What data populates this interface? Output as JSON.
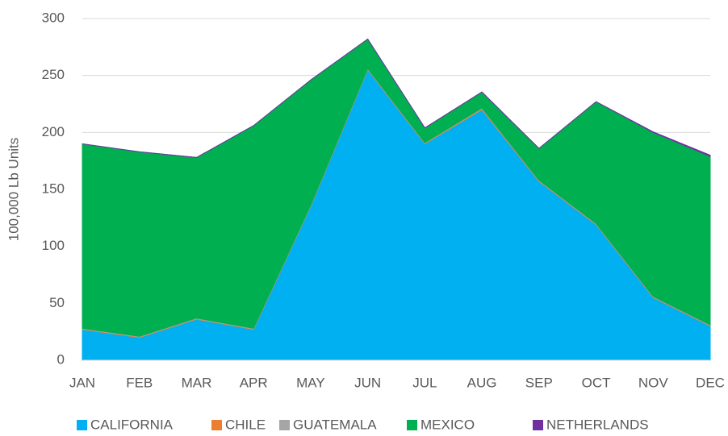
{
  "chart_data": {
    "type": "stacked_area",
    "y_label": "100,000 Lb Units",
    "categories": [
      "JAN",
      "FEB",
      "MAR",
      "APR",
      "MAY",
      "JUN",
      "JUL",
      "AUG",
      "SEP",
      "OCT",
      "NOV",
      "DEC"
    ],
    "series": [
      {
        "name": "CALIFORNIA",
        "color": "#00b0f0",
        "values": [
          27,
          20,
          36,
          27,
          135,
          255,
          190,
          220,
          157,
          119,
          55,
          30
        ]
      },
      {
        "name": "CHILE",
        "color": "#ed7d31",
        "values": [
          0.5,
          0.5,
          0.5,
          0.5,
          0.5,
          0.5,
          0.5,
          1,
          0.5,
          0.5,
          0.5,
          0.5
        ]
      },
      {
        "name": "GUATEMALA",
        "color": "#a5a5a5",
        "values": [
          0.5,
          0.5,
          0.5,
          0.5,
          0.5,
          0.5,
          0.5,
          0.5,
          0.5,
          0.5,
          0.5,
          0.5
        ]
      },
      {
        "name": "MEXICO",
        "color": "#00b050",
        "values": [
          162,
          162,
          141,
          178,
          110,
          26,
          13,
          14,
          28,
          107,
          144,
          148
        ]
      },
      {
        "name": "NETHERLANDS",
        "color": "#7030a0",
        "values": [
          0,
          0,
          0,
          0,
          0,
          0,
          0,
          0,
          0,
          0,
          0.5,
          1
        ]
      }
    ],
    "ylim": [
      0,
      300
    ],
    "yticks": [
      0,
      50,
      100,
      150,
      200,
      250,
      300
    ],
    "grid": true,
    "legend": "bottom"
  }
}
